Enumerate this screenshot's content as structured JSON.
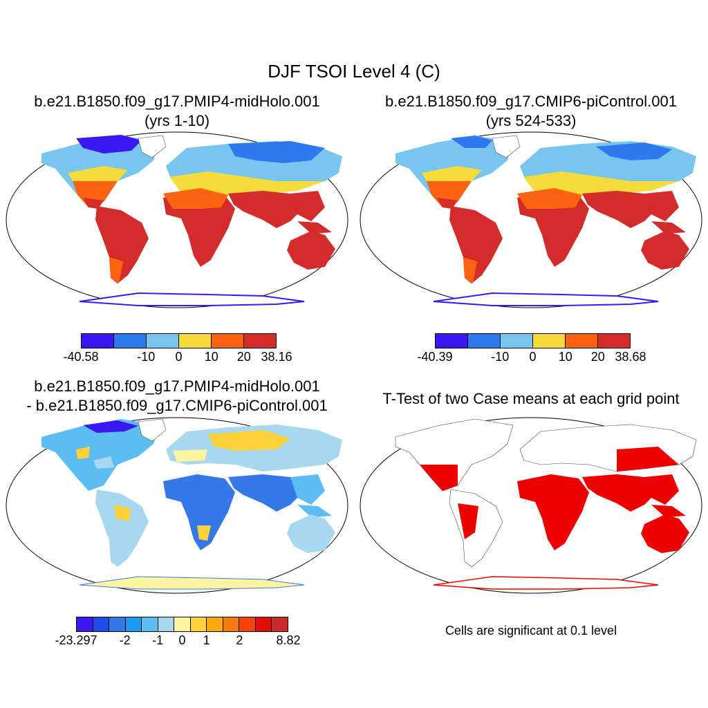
{
  "title": "DJF TSOI Level 4 (C)",
  "panels": {
    "top_left": {
      "title_line1": "b.e21.B1850.f09_g17.PMIP4-midHolo.001",
      "title_line2": "(yrs 1-10)",
      "colorbar": {
        "colors": [
          "#3b18f2",
          "#2f79ee",
          "#78c5f0",
          "#f7db3c",
          "#fb6310",
          "#d42b2b"
        ],
        "labels": [
          "-40.58",
          "-10",
          "0",
          "10",
          "20",
          "38.16"
        ]
      }
    },
    "top_right": {
      "title_line1": "b.e21.B1850.f09_g17.CMIP6-piControl.001",
      "title_line2": "(yrs 524-533)",
      "colorbar": {
        "colors": [
          "#3b18f2",
          "#2f79ee",
          "#78c5f0",
          "#f7db3c",
          "#fb6310",
          "#d42b2b"
        ],
        "labels": [
          "-40.39",
          "-10",
          "0",
          "10",
          "20",
          "38.68"
        ]
      }
    },
    "bottom_left": {
      "title_line1": "b.e21.B1850.f09_g17.PMIP4-midHolo.001",
      "title_line2": "- b.e21.B1850.f09_g17.CMIP6-piControl.001",
      "colorbar": {
        "colors": [
          "#3b18f2",
          "#1e4bea",
          "#3579e8",
          "#1e9bf0",
          "#5bbdf2",
          "#a8d8f0",
          "#fff5a0",
          "#fdd23a",
          "#fba90e",
          "#f97a10",
          "#f5420f",
          "#e10c0c",
          "#c92a2a"
        ],
        "labels": [
          "-23.297",
          "-2",
          "-1",
          "0",
          "1",
          "2",
          "8.82"
        ]
      }
    },
    "bottom_right": {
      "title": "T-Test of two Case means at each grid point",
      "caption": "Cells are significant at 0.1 level",
      "fill_color": "#ee0000"
    }
  }
}
